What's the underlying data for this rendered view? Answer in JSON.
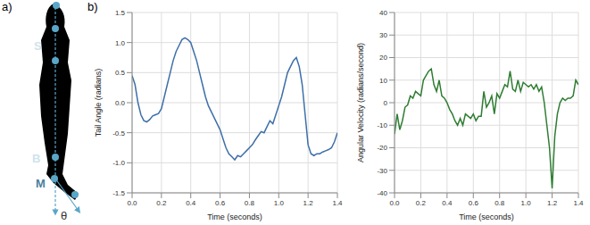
{
  "panel_labels": [
    "a)",
    "b)"
  ],
  "diagram": {
    "labels": [
      "S",
      "B",
      "M",
      "θ"
    ]
  },
  "chart_data": [
    {
      "type": "line",
      "x_label": "Time (seconds)",
      "y_label": "Tail Angle (radians)",
      "x": [
        0,
        0.02,
        0.04,
        0.06,
        0.08,
        0.1,
        0.12,
        0.14,
        0.16,
        0.18,
        0.2,
        0.22,
        0.24,
        0.26,
        0.28,
        0.3,
        0.32,
        0.34,
        0.36,
        0.38,
        0.4,
        0.42,
        0.44,
        0.46,
        0.48,
        0.5,
        0.52,
        0.54,
        0.56,
        0.58,
        0.6,
        0.62,
        0.64,
        0.66,
        0.68,
        0.7,
        0.72,
        0.74,
        0.76,
        0.78,
        0.8,
        0.82,
        0.84,
        0.86,
        0.88,
        0.9,
        0.92,
        0.94,
        0.96,
        0.98,
        1.0,
        1.02,
        1.04,
        1.06,
        1.08,
        1.1,
        1.12,
        1.14,
        1.16,
        1.18,
        1.2,
        1.22,
        1.24,
        1.26,
        1.28,
        1.3,
        1.32,
        1.34,
        1.36,
        1.38,
        1.4
      ],
      "values": [
        0.45,
        0.3,
        0.0,
        -0.2,
        -0.3,
        -0.32,
        -0.28,
        -0.22,
        -0.2,
        -0.18,
        -0.1,
        0.1,
        0.3,
        0.5,
        0.7,
        0.85,
        0.95,
        1.05,
        1.08,
        1.05,
        1.0,
        0.85,
        0.7,
        0.5,
        0.3,
        0.1,
        -0.05,
        -0.15,
        -0.25,
        -0.35,
        -0.45,
        -0.6,
        -0.75,
        -0.85,
        -0.9,
        -0.95,
        -0.88,
        -0.9,
        -0.85,
        -0.8,
        -0.75,
        -0.7,
        -0.62,
        -0.55,
        -0.48,
        -0.5,
        -0.4,
        -0.3,
        -0.35,
        -0.2,
        -0.05,
        0.1,
        0.3,
        0.5,
        0.6,
        0.7,
        0.75,
        0.6,
        0.3,
        -0.2,
        -0.7,
        -0.85,
        -0.88,
        -0.85,
        -0.85,
        -0.82,
        -0.8,
        -0.78,
        -0.75,
        -0.65,
        -0.5
      ],
      "color": "#3d6fa8",
      "xlim": [
        0,
        1.4
      ],
      "xticks": [
        {
          "value": 0,
          "label": "0.0"
        },
        0.2,
        0.4,
        0.6,
        0.8,
        {
          "value": 1,
          "label": "1.0"
        },
        1.2,
        1.4
      ],
      "ylim": [
        -1.5,
        1.5
      ],
      "yticks": [
        -1.5,
        {
          "value": -1,
          "label": "-1.0"
        },
        -0.5,
        {
          "value": 0,
          "label": "0.0"
        },
        0.5,
        {
          "value": 1,
          "label": "1.0"
        },
        1.5
      ],
      "grid": true
    },
    {
      "type": "line",
      "x_label": "Time (seconds)",
      "y_label": "Angular Velocity (radians/second)",
      "x": [
        0,
        0.02,
        0.04,
        0.06,
        0.08,
        0.1,
        0.12,
        0.14,
        0.16,
        0.18,
        0.2,
        0.22,
        0.24,
        0.26,
        0.28,
        0.3,
        0.32,
        0.34,
        0.36,
        0.38,
        0.4,
        0.42,
        0.44,
        0.46,
        0.48,
        0.5,
        0.52,
        0.54,
        0.56,
        0.58,
        0.6,
        0.62,
        0.64,
        0.66,
        0.68,
        0.7,
        0.72,
        0.74,
        0.76,
        0.78,
        0.8,
        0.82,
        0.84,
        0.86,
        0.88,
        0.9,
        0.92,
        0.94,
        0.96,
        0.98,
        1.0,
        1.02,
        1.04,
        1.06,
        1.08,
        1.1,
        1.12,
        1.14,
        1.16,
        1.18,
        1.2,
        1.22,
        1.24,
        1.26,
        1.28,
        1.3,
        1.32,
        1.34,
        1.36,
        1.38,
        1.4
      ],
      "values": [
        -14,
        -5,
        -12,
        -8,
        -2,
        -1,
        3,
        2,
        5,
        4,
        3,
        10,
        12,
        14,
        15,
        8,
        5,
        10,
        3,
        2,
        0,
        -3,
        -5,
        -8,
        -10,
        -7,
        -10,
        -5,
        -6,
        -7,
        -5,
        -8,
        -6,
        -6,
        5,
        -2,
        0,
        3,
        -5,
        4,
        2,
        5,
        8,
        7,
        14,
        6,
        5,
        10,
        5,
        9,
        8,
        7,
        8,
        6,
        8,
        5,
        7,
        0,
        -10,
        -20,
        -38,
        -15,
        -5,
        0,
        2,
        1,
        2,
        2,
        3,
        10,
        8
      ],
      "color": "#2e7d32",
      "xlim": [
        0,
        1.4
      ],
      "xticks": [
        {
          "value": 0,
          "label": "0.0"
        },
        0.2,
        0.4,
        0.6,
        0.8,
        {
          "value": 1,
          "label": "1.0"
        },
        1.2,
        1.4
      ],
      "ylim": [
        -40,
        40
      ],
      "yticks": [
        -40,
        -30,
        -20,
        -10,
        0,
        10,
        20,
        30,
        40
      ],
      "grid": true
    }
  ]
}
